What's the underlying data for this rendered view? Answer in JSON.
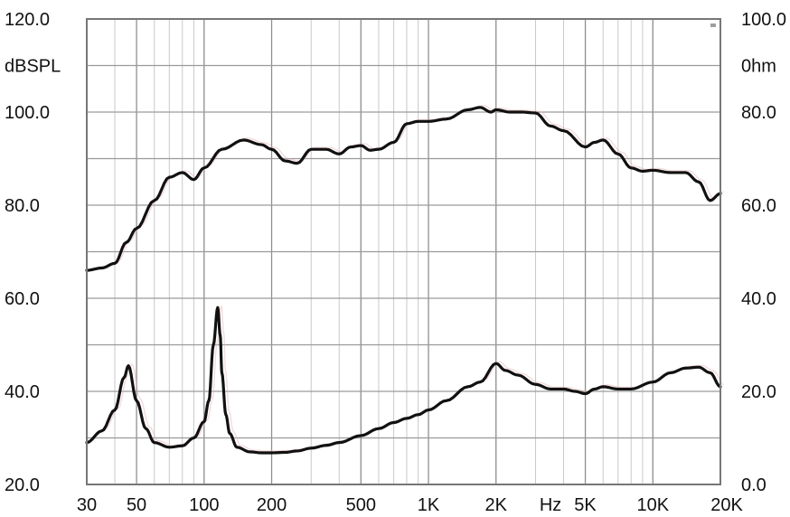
{
  "chart_data": {
    "type": "line",
    "left_axis": {
      "label": "dBSPL",
      "ticks": [
        "120.0",
        "100.0",
        "80.0",
        "60.0",
        "40.0",
        "20.0"
      ],
      "ylim": [
        20,
        120
      ]
    },
    "right_axis": {
      "label": "0hm",
      "ticks": [
        "100.0",
        "80.0",
        "60.0",
        "40.0",
        "20.0",
        "0.0"
      ],
      "ylim": [
        0,
        100
      ]
    },
    "x_axis": {
      "ticks": [
        "30",
        "50",
        "100",
        "200",
        "500",
        "1K",
        "2K",
        "Hz",
        "5K",
        "10K",
        "20K"
      ],
      "scale": "log",
      "xlim": [
        30,
        20000
      ]
    },
    "series": [
      {
        "axis": "left",
        "x": [
          30,
          35,
          40,
          45,
          50,
          60,
          70,
          80,
          90,
          100,
          120,
          150,
          180,
          200,
          230,
          260,
          300,
          350,
          400,
          450,
          500,
          550,
          600,
          700,
          800,
          900,
          1000,
          1200,
          1500,
          1700,
          1900,
          2000,
          2300,
          2600,
          3000,
          3500,
          4000,
          5000,
          5500,
          6000,
          7000,
          8000,
          9000,
          10000,
          12000,
          14000,
          16000,
          18000,
          20000
        ],
        "y": [
          66,
          66.5,
          67.5,
          72,
          75,
          81,
          86,
          87,
          85.5,
          88,
          92,
          94,
          93,
          92,
          89.5,
          89,
          92,
          92,
          91,
          92.5,
          92.8,
          91.8,
          92,
          93.5,
          97.5,
          98,
          98,
          98.5,
          100.5,
          101,
          100,
          100.5,
          100,
          100,
          99.8,
          97,
          96,
          92.5,
          93.5,
          94,
          91,
          88,
          87.3,
          87.5,
          87,
          87,
          85,
          81,
          82.5
        ]
      },
      {
        "axis": "right",
        "x": [
          30,
          35,
          40,
          44,
          46,
          50,
          55,
          60,
          70,
          80,
          90,
          100,
          105,
          110,
          115,
          118,
          120,
          125,
          130,
          140,
          160,
          180,
          200,
          230,
          260,
          300,
          350,
          400,
          500,
          600,
          700,
          800,
          900,
          1000,
          1200,
          1500,
          1700,
          2000,
          2200,
          2500,
          3000,
          3500,
          4000,
          4500,
          5000,
          5500,
          6000,
          7000,
          8000,
          10000,
          12000,
          14000,
          16000,
          18000,
          20000
        ],
        "y": [
          9,
          11.5,
          16,
          23,
          25.5,
          18,
          12,
          9,
          8,
          8.3,
          10,
          13.5,
          18,
          30,
          38,
          32,
          24,
          15,
          11,
          8,
          7,
          6.8,
          6.8,
          6.9,
          7.2,
          7.8,
          8.4,
          9,
          10.5,
          12,
          13.3,
          14.2,
          15,
          16,
          18,
          21,
          22,
          26,
          24.5,
          23.5,
          21.5,
          20.5,
          20.5,
          20,
          19.5,
          20.5,
          21,
          20.5,
          20.5,
          22,
          24,
          25,
          25.2,
          24,
          21
        ]
      }
    ],
    "grid": true,
    "legend": "none"
  }
}
